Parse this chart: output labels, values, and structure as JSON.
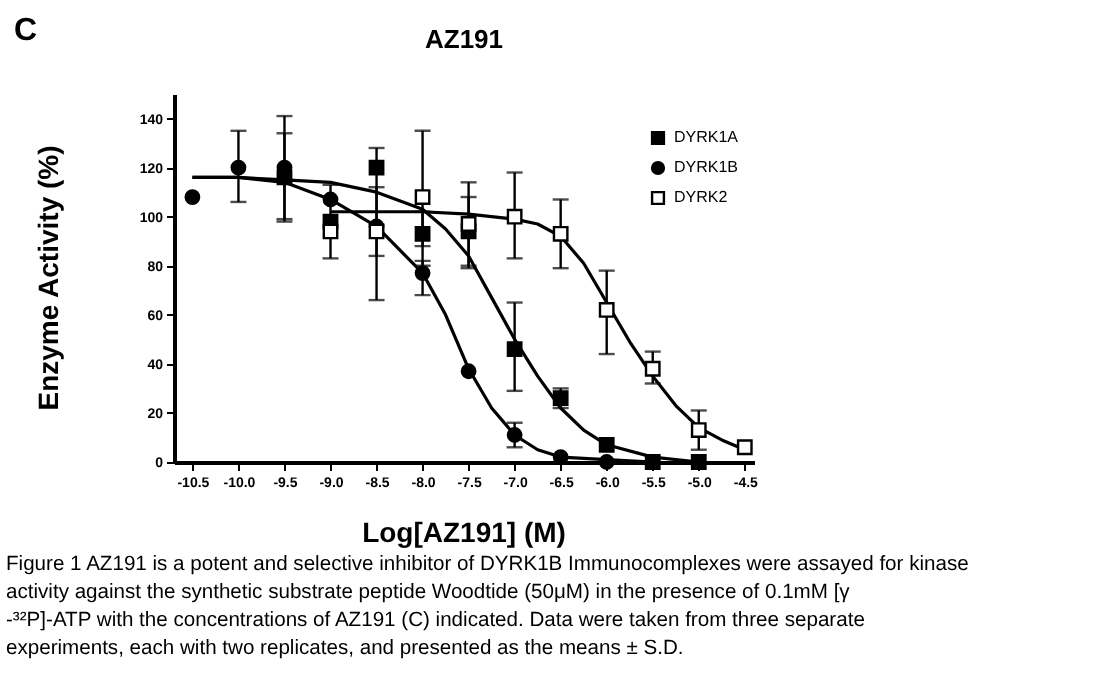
{
  "chart_data": {
    "type": "scatter",
    "title": "AZ191",
    "xlabel": "Log[AZ191] (M)",
    "ylabel": "Enzyme Activity (%)",
    "annotations": [
      "C",
      "Figure 1 AZ191 is a potent and selective inhibitor of DYRK1B Immunocomplexes were assayed for kinase activity against the synthetic substrate peptide Woodtide (50μM) in the presence of 0.1mM [γ -³²P]-ATP with the concentrations of AZ191 (C) indicated. Data were taken from three separate experiments, each with two replicates, and presented as the means ± S.D."
    ],
    "xlim": [
      -10.7,
      -4.4
    ],
    "ylim": [
      0,
      150
    ],
    "xticks": [
      -10.5,
      {
        "value": -10,
        "label": "-10.0"
      },
      -9.5,
      {
        "value": -9,
        "label": "-9.0"
      },
      -8.5,
      {
        "value": -8,
        "label": "-8.0"
      },
      -7.5,
      {
        "value": -7,
        "label": "-7.0"
      },
      -6.5,
      {
        "value": -6,
        "label": "-6.0"
      },
      -5.5,
      {
        "value": -5,
        "label": "-5.0"
      },
      -4.5
    ],
    "yticks": [
      0,
      20,
      40,
      60,
      80,
      100,
      120,
      140
    ],
    "grid": false,
    "legend": "top right",
    "series": [
      {
        "name": "DYRK1A",
        "color": "#000000",
        "marker": "square",
        "x": [
          -9.5,
          -9,
          -8.5,
          -8,
          -7.5,
          -7,
          -6.5,
          -6,
          -5.5,
          -5
        ],
        "values": [
          116,
          98,
          120,
          93,
          94,
          46,
          26,
          7,
          0,
          0
        ],
        "errors": [
          [
            99,
            134
          ],
          null,
          [
            66,
            128
          ],
          [
            80,
            102
          ],
          [
            79,
            114
          ],
          [
            29,
            65
          ],
          [
            22,
            30
          ],
          null,
          null,
          null
        ]
      },
      {
        "name": "DYRK1B",
        "color": "#000000",
        "marker": "circle",
        "x": [
          -10.5,
          -10,
          -9.5,
          -9,
          -8.5,
          -8,
          -7.5,
          -7,
          -6.5,
          -6
        ],
        "values": [
          108,
          120,
          120,
          107,
          96,
          77,
          37,
          11,
          2,
          0
        ],
        "errors": [
          null,
          [
            106,
            135
          ],
          [
            98,
            141
          ],
          null,
          null,
          [
            68,
            82
          ],
          null,
          [
            6,
            16
          ],
          null,
          null
        ]
      },
      {
        "name": "DYRK2",
        "color": "#ffffff",
        "marker": "square",
        "x": [
          -9,
          -8.5,
          -8,
          -7.5,
          -7,
          -6.5,
          -6,
          -5.5,
          -5,
          -4.5
        ],
        "values": [
          94,
          94,
          108,
          97,
          100,
          93,
          62,
          38,
          13,
          6
        ],
        "errors": [
          [
            83,
            113
          ],
          [
            84,
            112
          ],
          [
            88,
            135
          ],
          [
            80,
            108
          ],
          [
            83,
            118
          ],
          [
            79,
            107
          ],
          [
            44,
            78
          ],
          [
            32,
            45
          ],
          [
            5,
            21
          ],
          null
        ]
      },
      {
        "type": "line",
        "color": "#000000",
        "marker": "none",
        "x": [
          -10.5,
          -10,
          -9.5,
          -9,
          -8.5,
          -8,
          -7.75,
          -7.5,
          -7.25,
          -7,
          -6.75,
          -6.5,
          -6,
          -5.5
        ],
        "values": [
          116,
          116,
          114,
          107,
          96,
          77,
          60,
          38,
          22,
          11,
          5,
          2,
          1,
          0
        ]
      },
      {
        "type": "line",
        "color": "#000000",
        "marker": "none",
        "x": [
          -10.5,
          -10,
          -9.5,
          -9,
          -8.5,
          -8,
          -7.75,
          -7.5,
          -7.25,
          -7,
          -6.75,
          -6.5,
          -6.25,
          -6,
          -5.5,
          -5
        ],
        "values": [
          116,
          116,
          115,
          114,
          110,
          103,
          95,
          84,
          67,
          50,
          35,
          22,
          13,
          7,
          2,
          0
        ]
      },
      {
        "type": "line",
        "color": "#000000",
        "marker": "none",
        "x": [
          -9,
          -8,
          -7.5,
          -7,
          -6.75,
          -6.5,
          -6.25,
          -6,
          -5.75,
          -5.5,
          -5.25,
          -5,
          -4.75,
          -4.5
        ],
        "values": [
          102,
          102,
          101,
          99,
          97,
          92,
          81,
          65,
          49,
          35,
          23,
          14,
          9,
          5
        ]
      }
    ]
  }
}
